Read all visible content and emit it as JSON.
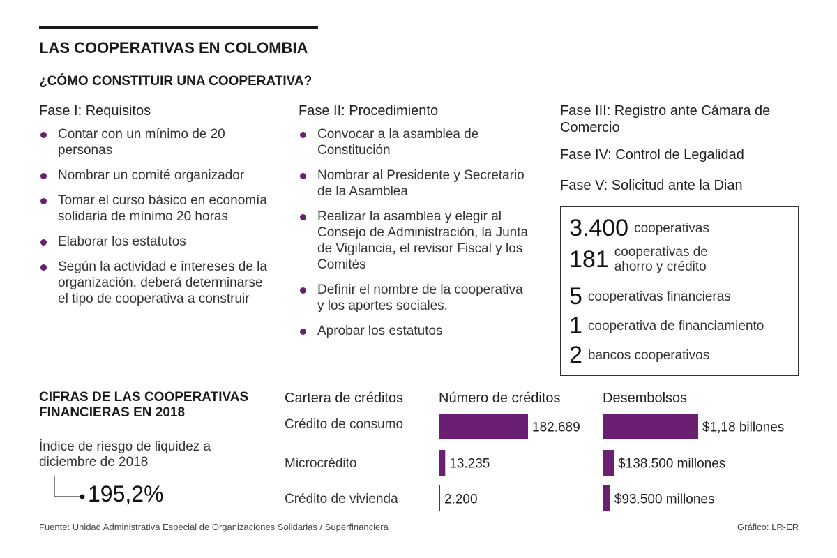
{
  "title": "LAS COOPERATIVAS EN COLOMBIA",
  "subtitle": "¿CÓMO CONSTITUIR UNA COOPERATIVA?",
  "phases": [
    {
      "heading": "Fase I: Requisitos",
      "items": [
        "Contar con un mínimo de 20 personas",
        "Nombrar un comité organizador",
        "Tomar el curso básico en economía solidaria de mínimo 20 horas",
        "Elaborar los estatutos",
        "Según la actividad e intereses de la organización, deberá determinarse el tipo de cooperativa a construir"
      ]
    },
    {
      "heading": "Fase II: Procedimiento",
      "items": [
        "Convocar a la asamblea de Constitución",
        "Nombrar al Presidente y Secretario de la Asamblea",
        "Realizar la asamblea y elegir al Consejo de Administración, la Junta de Vigilancia, el revisor Fiscal y los Comités",
        "Definir el nombre de la cooperativa y los aportes sociales.",
        "Aprobar los estatutos"
      ]
    }
  ],
  "phases_right": [
    "Fase III: Registro ante Cámara de Comercio",
    "Fase IV: Control de Legalidad",
    "Fase V: Solicitud ante la Dian"
  ],
  "stats": [
    {
      "value": "3.400",
      "label": "cooperativas"
    },
    {
      "value": "181",
      "label": "cooperativas de ahorro y crédito"
    },
    {
      "value": "5",
      "label": "cooperativas financieras"
    },
    {
      "value": "1",
      "label": "cooperativa de financiamiento"
    },
    {
      "value": "2",
      "label": "bancos cooperativos"
    }
  ],
  "section2_title": "CIFRAS DE LAS COOPERATIVAS FINANCIERAS EN 2018",
  "liquidity": {
    "label": "Índice de riesgo de liquidez a diciembre de 2018",
    "value": "195,2%"
  },
  "chart_data": {
    "type": "bar",
    "title": "Cartera de créditos",
    "categories": [
      "Crédito de consumo",
      "Microcrédito",
      "Crédito de vivienda"
    ],
    "series": [
      {
        "name": "Número de créditos",
        "values": [
          182689,
          13235,
          2200
        ],
        "labels": [
          "182.689",
          "13.235",
          "2.200"
        ]
      },
      {
        "name": "Desembolsos",
        "values": [
          1180000,
          138500,
          93500
        ],
        "labels": [
          "$1,18 billones",
          "$138.500 millones",
          "$93.500 millones"
        ]
      }
    ],
    "bar_color": "#6a1f73"
  },
  "footer": {
    "source": "Fuente: Unidad Administrativa Especial de Organizaciones Solidarias / Superfinanciera",
    "credit": "Gráfico: LR-ER"
  }
}
